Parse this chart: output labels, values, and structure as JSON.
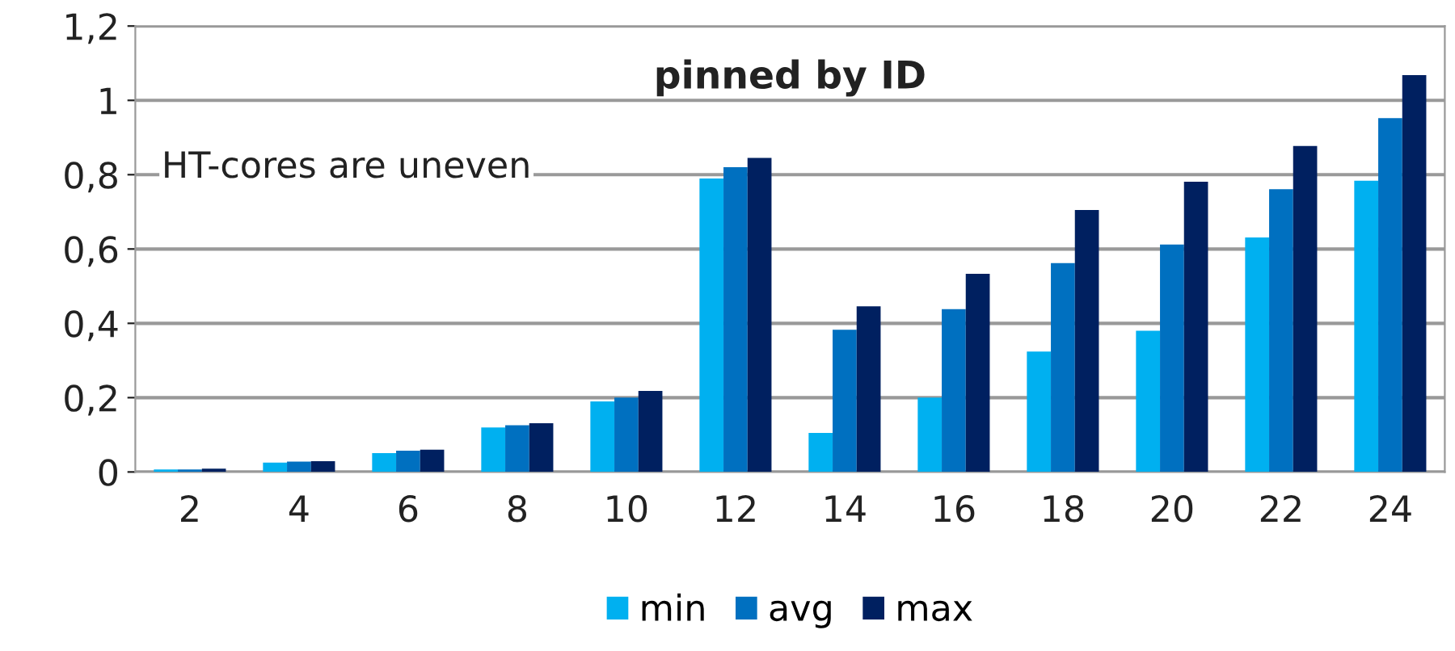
{
  "chart_data": {
    "type": "bar",
    "title": "pinned by ID",
    "annotations": [
      "HT-cores are uneven"
    ],
    "categories": [
      "2",
      "4",
      "6",
      "8",
      "10",
      "12",
      "14",
      "16",
      "18",
      "20",
      "22",
      "24"
    ],
    "series": [
      {
        "name": "min",
        "color": "#00b0f0",
        "values": [
          0.007,
          0.025,
          0.051,
          0.12,
          0.19,
          0.79,
          0.105,
          0.2,
          0.324,
          0.38,
          0.631,
          0.784
        ]
      },
      {
        "name": "avg",
        "color": "#0070c0",
        "values": [
          0.007,
          0.028,
          0.057,
          0.126,
          0.2,
          0.82,
          0.383,
          0.438,
          0.562,
          0.612,
          0.761,
          0.952
        ]
      },
      {
        "name": "max",
        "color": "#002060",
        "values": [
          0.009,
          0.029,
          0.06,
          0.131,
          0.218,
          0.845,
          0.446,
          0.533,
          0.705,
          0.781,
          0.877,
          1.068
        ]
      }
    ],
    "ylim": [
      0,
      1.2
    ],
    "yticks": [
      {
        "value": 0,
        "label": "0"
      },
      {
        "value": 0.2,
        "label": "0,2"
      },
      {
        "value": 0.4,
        "label": "0,4"
      },
      {
        "value": 0.6,
        "label": "0,6"
      },
      {
        "value": 0.8,
        "label": "0,8"
      },
      {
        "value": 1,
        "label": "1"
      },
      {
        "value": 1.2,
        "label": "1,2"
      }
    ],
    "grid": "y",
    "legend": "bottom"
  }
}
